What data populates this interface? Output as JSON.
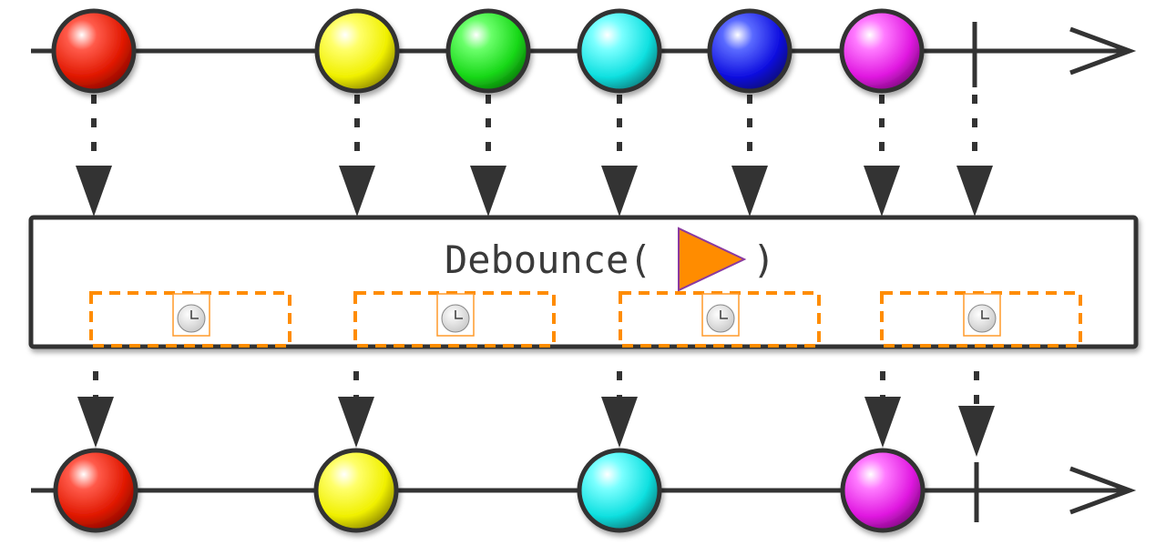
{
  "operator": {
    "name": "Debounce(",
    "closing": ")",
    "arg_icon": "orange-triangle-icon",
    "arg_color": "#ff8c00"
  },
  "colors": {
    "line": "#333333",
    "box_border": "#333333",
    "timer_dash": "#ff8c00",
    "clock_border": "#ff9a2a"
  },
  "timeline_icons": {
    "ball": "marble-icon",
    "completion": "completion-tick-icon",
    "arrow": "down-arrow-icon",
    "timer": "clock-icon"
  },
  "marbles": {
    "input": [
      {
        "color": "red"
      },
      {
        "color": "yellow"
      },
      {
        "color": "green"
      },
      {
        "color": "cyan"
      },
      {
        "color": "blue"
      },
      {
        "color": "magenta"
      }
    ],
    "output": [
      {
        "color": "red"
      },
      {
        "color": "yellow"
      },
      {
        "color": "cyan"
      },
      {
        "color": "magenta"
      }
    ]
  }
}
